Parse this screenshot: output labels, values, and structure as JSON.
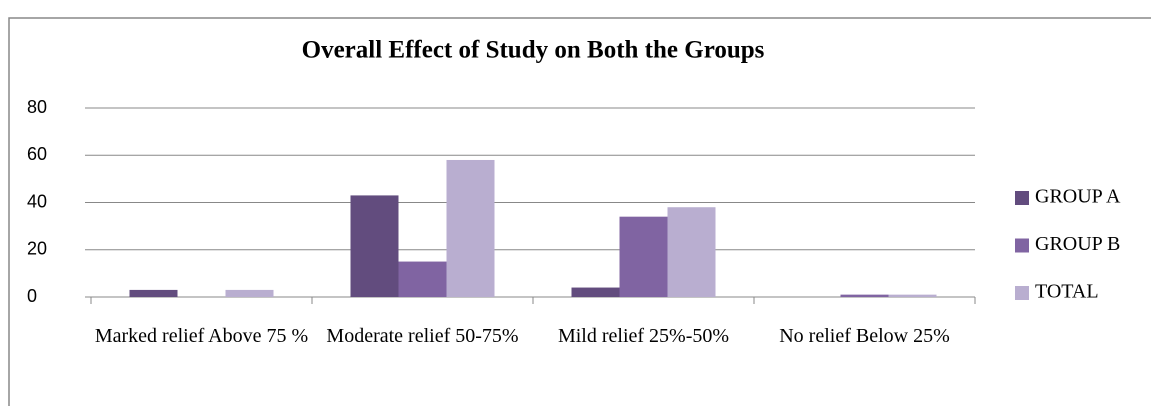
{
  "chart_data": {
    "type": "bar",
    "title": "Overall Effect of Study on Both the Groups",
    "categories": [
      "Marked relief Above 75 %",
      "Moderate relief 50-75%",
      "Mild relief 25%-50%",
      "No relief Below 25%"
    ],
    "series": [
      {
        "name": "GROUP A",
        "color": "#624c7e",
        "values": [
          3,
          43,
          4,
          0
        ]
      },
      {
        "name": "GROUP B",
        "color": "#8064a2",
        "values": [
          0,
          15,
          34,
          1
        ]
      },
      {
        "name": "TOTAL",
        "color": "#b9aed0",
        "values": [
          3,
          58,
          38,
          1
        ]
      }
    ],
    "ylim": [
      0,
      80
    ],
    "yticks": [
      0,
      20,
      40,
      60,
      80
    ],
    "grid": true,
    "legend": "right"
  }
}
